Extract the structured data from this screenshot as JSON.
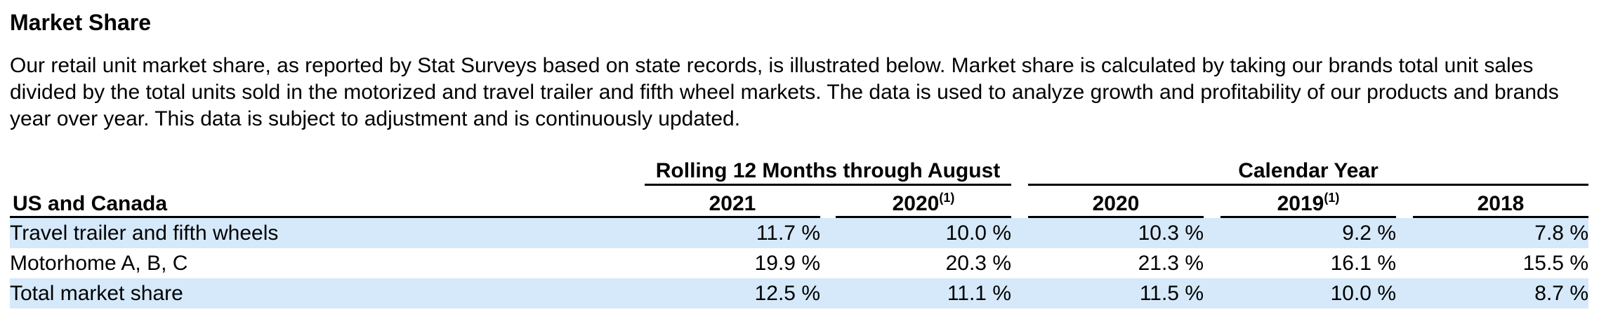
{
  "section": {
    "title": "Market Share",
    "intro": "Our retail unit market share, as reported by Stat Surveys based on state records, is illustrated below. Market share is calculated by taking our brands total unit sales divided by the total units sold in the motorized and travel trailer and fifth wheel markets. The data is used to analyze growth and profitability of our products and brands year over year. This data is subject to adjustment and is continuously updated."
  },
  "table": {
    "row_label_header": "US and Canada",
    "groups": {
      "rolling": "Rolling 12 Months through August",
      "calendar": "Calendar Year"
    },
    "columns": [
      {
        "year": "2021",
        "note": ""
      },
      {
        "year": "2020",
        "note": "(1)"
      },
      {
        "year": "2020",
        "note": ""
      },
      {
        "year": "2019",
        "note": "(1)"
      },
      {
        "year": "2018",
        "note": ""
      }
    ],
    "rows": [
      {
        "label": "Travel trailer and fifth wheels",
        "values": [
          "11.7 %",
          "10.0 %",
          "10.3 %",
          "9.2 %",
          "7.8 %"
        ]
      },
      {
        "label": "Motorhome A, B, C",
        "values": [
          "19.9 %",
          "20.3 %",
          "21.3 %",
          "16.1 %",
          "15.5 %"
        ]
      },
      {
        "label": "Total market share",
        "values": [
          "12.5 %",
          "11.1 %",
          "11.5 %",
          "10.0 %",
          "8.7 %"
        ]
      }
    ]
  }
}
